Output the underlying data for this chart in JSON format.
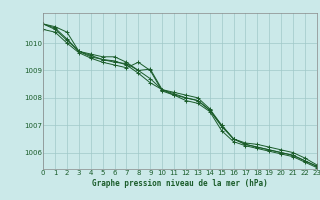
{
  "title": "Graphe pression niveau de la mer (hPa)",
  "background_color": "#cbe9e9",
  "grid_color": "#a0c8c8",
  "line_color": "#1a5c2a",
  "xlim": [
    0,
    23
  ],
  "ylim": [
    1005.4,
    1011.1
  ],
  "yticks": [
    1006,
    1007,
    1008,
    1009,
    1010
  ],
  "xticks": [
    0,
    1,
    2,
    3,
    4,
    5,
    6,
    7,
    8,
    9,
    10,
    11,
    12,
    13,
    14,
    15,
    16,
    17,
    18,
    19,
    20,
    21,
    22,
    23
  ],
  "series": [
    [
      1010.7,
      1010.6,
      1010.4,
      1009.7,
      1009.6,
      1009.5,
      1009.5,
      1009.3,
      1009.0,
      1009.05,
      1008.3,
      1008.2,
      1008.1,
      1008.0,
      1007.6,
      1007.0,
      1006.5,
      1006.35,
      1006.3,
      1006.2,
      1006.1,
      1006.0,
      1005.8,
      1005.55
    ],
    [
      1010.7,
      1010.5,
      1010.1,
      1009.7,
      1009.55,
      1009.4,
      1009.35,
      1009.2,
      1008.9,
      1008.55,
      1008.3,
      1008.1,
      1008.0,
      1007.9,
      1007.55,
      1007.0,
      1006.5,
      1006.3,
      1006.2,
      1006.1,
      1006.0,
      1005.9,
      1005.7,
      1005.5
    ],
    [
      1010.5,
      1010.4,
      1010.0,
      1009.65,
      1009.45,
      1009.3,
      1009.2,
      1009.1,
      1009.3,
      1009.0,
      1008.25,
      1008.1,
      1007.9,
      1007.8,
      1007.5,
      1006.8,
      1006.4,
      1006.25,
      1006.15,
      1006.05,
      1005.95,
      1005.85,
      1005.65,
      1005.45
    ],
    [
      1010.7,
      1010.55,
      1010.15,
      1009.7,
      1009.5,
      1009.4,
      1009.3,
      1009.25,
      1009.0,
      1008.7,
      1008.3,
      1008.15,
      1008.0,
      1007.9,
      1007.55,
      1006.95,
      1006.5,
      1006.3,
      1006.2,
      1006.1,
      1006.0,
      1005.9,
      1005.7,
      1005.5
    ]
  ]
}
